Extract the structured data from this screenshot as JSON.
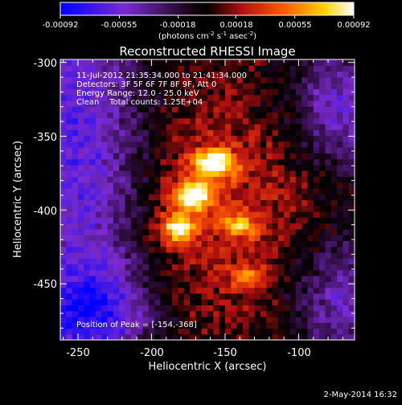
{
  "chart_data": {
    "type": "heatmap",
    "title": "Reconstructed RHESSI Image",
    "xlabel": "Heliocentric X (arcsec)",
    "ylabel": "Heliocentric Y (arcsec)",
    "xlim": [
      -262,
      -62
    ],
    "ylim": [
      -488,
      -298
    ],
    "x_ticks": [
      -250,
      -200,
      -150,
      -100
    ],
    "y_ticks": [
      -300,
      -350,
      -400,
      -450
    ],
    "colorbar": {
      "ticks": [
        "-0.00092",
        "-0.00055",
        "-0.00018",
        "0.00018",
        "0.00055",
        "0.00092"
      ],
      "range": [
        -0.00092,
        0.00092
      ],
      "units_label_parts": [
        "(photons cm",
        "-2",
        " s",
        "-1",
        " asec",
        "-2",
        ")"
      ],
      "colormap": "blue-purple-black-red-yellow-white"
    },
    "info_lines": [
      "11-Jul-2012 21:35:34.000 to 21:41:34.000",
      "Detectors: 3F 5F 6F 7F 8F 9F, Att 0",
      "Energy Range: 12.0 - 25.0 keV",
      "Clean    Total counts: 1.25E+04"
    ],
    "peak_text": "Position of Peak = [-154,-368]",
    "peak_position": [
      -154,
      -368
    ],
    "sources": [
      {
        "x": -158,
        "y": -368,
        "intensity": 1.0,
        "sx": 10,
        "sy": 6
      },
      {
        "x": -172,
        "y": -390,
        "intensity": 0.95,
        "sx": 9,
        "sy": 7
      },
      {
        "x": -183,
        "y": -412,
        "intensity": 0.82,
        "sx": 8,
        "sy": 7
      },
      {
        "x": -140,
        "y": -410,
        "intensity": 0.55,
        "sx": 8,
        "sy": 5
      },
      {
        "x": -135,
        "y": -445,
        "intensity": 0.4,
        "sx": 8,
        "sy": 6
      }
    ],
    "background_regions": [
      {
        "x": -250,
        "y": -360,
        "intensity": -0.75,
        "sx": 35,
        "sy": 80
      },
      {
        "x": -240,
        "y": -470,
        "intensity": -0.7,
        "sx": 30,
        "sy": 25
      },
      {
        "x": -70,
        "y": -330,
        "intensity": -0.6,
        "sx": 25,
        "sy": 30
      },
      {
        "x": -70,
        "y": -460,
        "intensity": -0.55,
        "sx": 25,
        "sy": 30
      }
    ]
  },
  "footer_date": "2-May-2014 16:32"
}
